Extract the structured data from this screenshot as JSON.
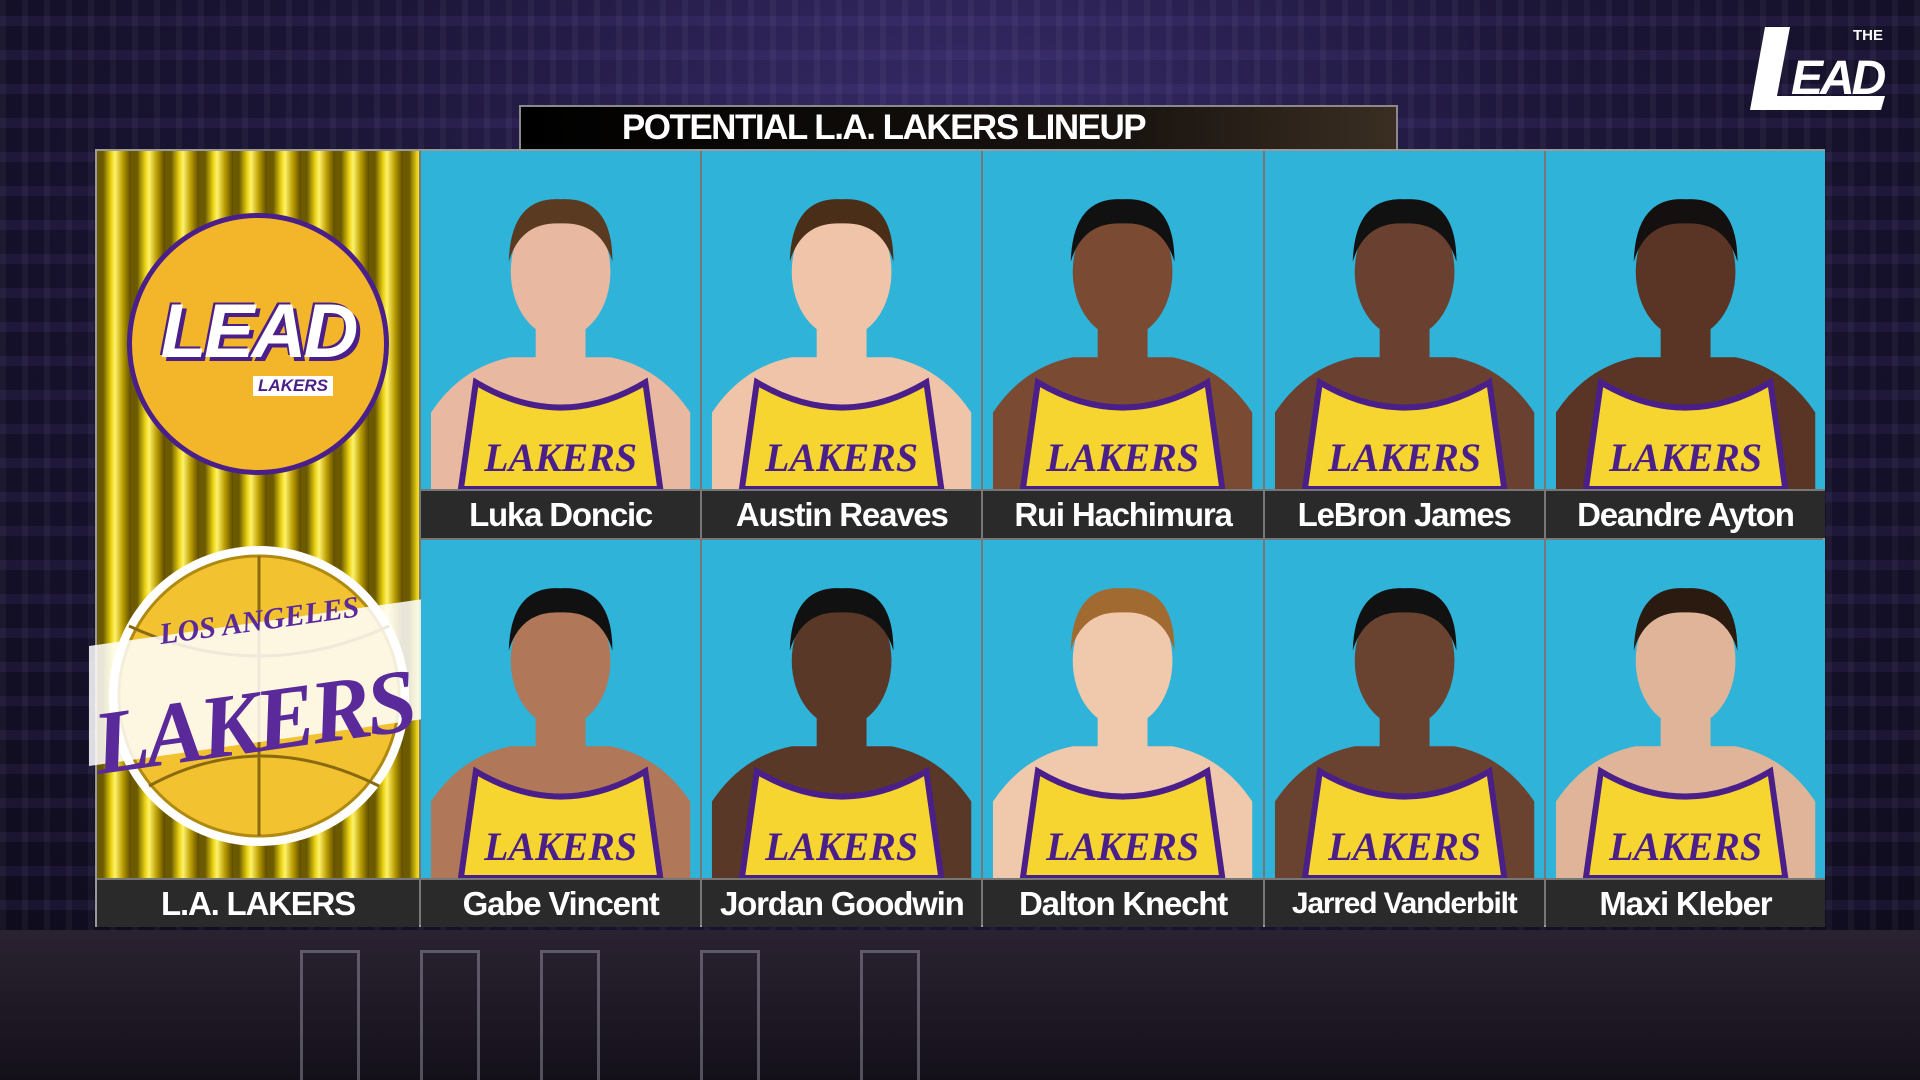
{
  "title": "POTENTIAL L.A. LAKERS LINEUP",
  "brand_logo": "THE LEAD",
  "team": {
    "name": "L.A. LAKERS",
    "lead_logo": "LEAD LAKERS",
    "team_logo": "LOS ANGELES LAKERS"
  },
  "players": [
    {
      "name": "Luka Doncic",
      "jersey": "LAKERS"
    },
    {
      "name": "Austin Reaves",
      "jersey": "LAKERS"
    },
    {
      "name": "Rui Hachimura",
      "jersey": "LAKERS"
    },
    {
      "name": "LeBron James",
      "jersey": "LAKERS"
    },
    {
      "name": "Deandre Ayton",
      "jersey": "LAKERS"
    },
    {
      "name": "Gabe Vincent",
      "jersey": "LAKERS"
    },
    {
      "name": "Jordan Goodwin",
      "jersey": "LAKERS"
    },
    {
      "name": "Dalton Knecht",
      "jersey": "LAKERS"
    },
    {
      "name": "Jarred Vanderbilt",
      "jersey": "LAKERS"
    },
    {
      "name": "Maxi Kleber",
      "jersey": "LAKERS"
    }
  ],
  "colors": {
    "lakers_purple": "#4b1f8a",
    "lakers_gold": "#f3c52a",
    "photo_bg": "#2fb3d8"
  }
}
